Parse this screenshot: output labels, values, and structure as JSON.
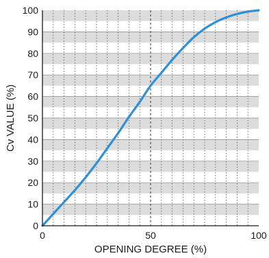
{
  "chart_data": {
    "type": "line",
    "xlabel": "OPENING DEGREE (%)",
    "ylabel": "Cv VALUE (%)",
    "xlim": [
      0,
      100
    ],
    "ylim": [
      0,
      100
    ],
    "x_ticks": [
      0,
      50,
      100
    ],
    "y_ticks": [
      0,
      10,
      20,
      30,
      40,
      50,
      60,
      70,
      80,
      90,
      100
    ],
    "x_tick_labels": [
      "0",
      "50",
      "100"
    ],
    "y_tick_labels": [
      "0",
      "10",
      "20",
      "30",
      "40",
      "50",
      "60",
      "70",
      "80",
      "90",
      "100"
    ],
    "grid": true,
    "background": "alternating gray and white horizontal bands every 5%",
    "series": [
      {
        "x": [
          0,
          5,
          10,
          15,
          20,
          25,
          30,
          35,
          40,
          45,
          50,
          55,
          60,
          65,
          70,
          75,
          80,
          85,
          90,
          95,
          100
        ],
        "y": [
          0,
          5.5,
          11,
          16.5,
          22.5,
          29,
          36,
          43,
          50.5,
          57.5,
          65,
          71,
          77,
          82.5,
          87.5,
          91.5,
          94.5,
          96.7,
          98.3,
          99.4,
          100
        ],
        "color": "#2f8fd8"
      }
    ],
    "markers": [
      {
        "x": 50,
        "style": "dashed vertical line"
      }
    ]
  }
}
